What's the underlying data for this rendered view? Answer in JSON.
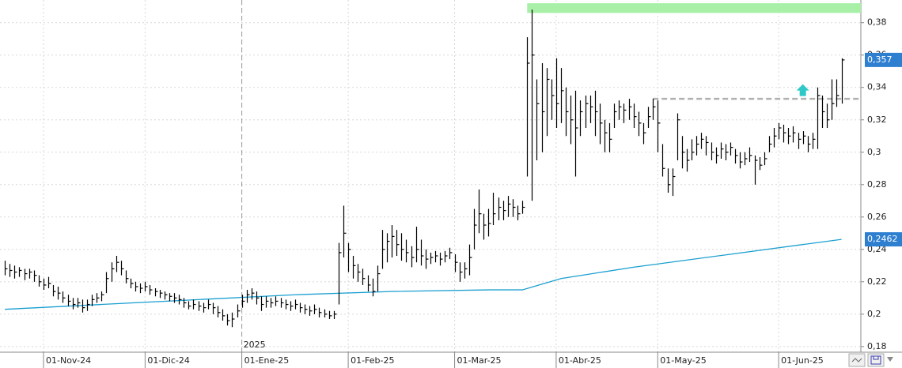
{
  "chart_data": {
    "type": "ohlc",
    "color": "#000000",
    "xlim": [
      -1,
      177
    ],
    "ylim": [
      0.177,
      0.394
    ],
    "grid": true,
    "yticks": [
      {
        "value": 0.18,
        "label": "0,18"
      },
      {
        "value": 0.2,
        "label": "0,2"
      },
      {
        "value": 0.22,
        "label": "0,22"
      },
      {
        "value": 0.24,
        "label": "0,24"
      },
      {
        "value": 0.26,
        "label": "0,26"
      },
      {
        "value": 0.28,
        "label": "0,28"
      },
      {
        "value": 0.3,
        "label": "0,3"
      },
      {
        "value": 0.32,
        "label": "0,32"
      },
      {
        "value": 0.34,
        "label": "0,34"
      },
      {
        "value": 0.36,
        "label": "0,36"
      },
      {
        "value": 0.38,
        "label": "0,38"
      }
    ],
    "xticks": [
      {
        "value": 8,
        "label": "01-Nov-24"
      },
      {
        "value": 29,
        "label": "01-Dic-24"
      },
      {
        "value": 49,
        "label": "01-Ene-25"
      },
      {
        "value": 71,
        "label": "01-Feb-25"
      },
      {
        "value": 93,
        "label": "01-Mar-25"
      },
      {
        "value": 114,
        "label": "01-Abr-25"
      },
      {
        "value": 135,
        "label": "01-May-25"
      },
      {
        "value": 160,
        "label": "01-Jun-25"
      }
    ],
    "year_marker": {
      "value": 49,
      "label": "2025"
    },
    "high": [
      0.233,
      0.231,
      0.23,
      0.229,
      0.228,
      0.228,
      0.227,
      0.224,
      0.222,
      0.223,
      0.218,
      0.217,
      0.214,
      0.212,
      0.21,
      0.21,
      0.209,
      0.209,
      0.212,
      0.213,
      0.214,
      0.226,
      0.232,
      0.236,
      0.233,
      0.227,
      0.222,
      0.22,
      0.219,
      0.22,
      0.218,
      0.216,
      0.215,
      0.214,
      0.213,
      0.213,
      0.212,
      0.21,
      0.208,
      0.209,
      0.208,
      0.207,
      0.209,
      0.207,
      0.205,
      0.203,
      0.2,
      0.201,
      0.206,
      0.212,
      0.215,
      0.216,
      0.214,
      0.211,
      0.211,
      0.21,
      0.211,
      0.21,
      0.209,
      0.208,
      0.209,
      0.207,
      0.206,
      0.205,
      0.206,
      0.204,
      0.203,
      0.202,
      0.202,
      0.244,
      0.267,
      0.244,
      0.236,
      0.231,
      0.228,
      0.224,
      0.222,
      0.23,
      0.252,
      0.25,
      0.255,
      0.252,
      0.25,
      0.246,
      0.242,
      0.254,
      0.246,
      0.24,
      0.238,
      0.239,
      0.238,
      0.239,
      0.241,
      0.237,
      0.232,
      0.232,
      0.243,
      0.265,
      0.277,
      0.262,
      0.265,
      0.275,
      0.272,
      0.27,
      0.273,
      0.271,
      0.267,
      0.27,
      0.371,
      0.388,
      0.345,
      0.355,
      0.352,
      0.345,
      0.358,
      0.352,
      0.34,
      0.335,
      0.338,
      0.332,
      0.335,
      0.335,
      0.338,
      0.33,
      0.32,
      0.318,
      0.33,
      0.332,
      0.33,
      0.333,
      0.33,
      0.325,
      0.318,
      0.328,
      0.333,
      0.332,
      0.305,
      0.29,
      0.29,
      0.324,
      0.31,
      0.302,
      0.308,
      0.31,
      0.312,
      0.31,
      0.306,
      0.303,
      0.306,
      0.305,
      0.306,
      0.302,
      0.3,
      0.3,
      0.303,
      0.298,
      0.297,
      0.3,
      0.31,
      0.315,
      0.318,
      0.317,
      0.315,
      0.316,
      0.312,
      0.313,
      0.31,
      0.312,
      0.34,
      0.335,
      0.33,
      0.345,
      0.345,
      0.358
    ],
    "low": [
      0.224,
      0.223,
      0.222,
      0.223,
      0.221,
      0.222,
      0.22,
      0.217,
      0.215,
      0.216,
      0.211,
      0.209,
      0.207,
      0.205,
      0.203,
      0.204,
      0.201,
      0.202,
      0.205,
      0.207,
      0.208,
      0.213,
      0.22,
      0.226,
      0.224,
      0.219,
      0.216,
      0.214,
      0.213,
      0.214,
      0.212,
      0.211,
      0.21,
      0.209,
      0.208,
      0.207,
      0.206,
      0.204,
      0.203,
      0.203,
      0.202,
      0.201,
      0.203,
      0.2,
      0.198,
      0.196,
      0.193,
      0.192,
      0.198,
      0.204,
      0.207,
      0.209,
      0.206,
      0.202,
      0.204,
      0.204,
      0.205,
      0.204,
      0.203,
      0.202,
      0.203,
      0.201,
      0.2,
      0.199,
      0.2,
      0.198,
      0.198,
      0.197,
      0.197,
      0.206,
      0.235,
      0.226,
      0.222,
      0.22,
      0.218,
      0.214,
      0.211,
      0.214,
      0.228,
      0.232,
      0.235,
      0.236,
      0.233,
      0.232,
      0.229,
      0.232,
      0.23,
      0.228,
      0.231,
      0.232,
      0.23,
      0.232,
      0.234,
      0.226,
      0.22,
      0.222,
      0.224,
      0.24,
      0.25,
      0.246,
      0.248,
      0.255,
      0.258,
      0.258,
      0.26,
      0.26,
      0.258,
      0.262,
      0.285,
      0.27,
      0.295,
      0.3,
      0.31,
      0.32,
      0.315,
      0.318,
      0.31,
      0.305,
      0.285,
      0.31,
      0.315,
      0.318,
      0.31,
      0.305,
      0.3,
      0.3,
      0.315,
      0.32,
      0.318,
      0.32,
      0.315,
      0.31,
      0.305,
      0.315,
      0.32,
      0.3,
      0.285,
      0.275,
      0.273,
      0.295,
      0.29,
      0.288,
      0.295,
      0.298,
      0.302,
      0.298,
      0.295,
      0.293,
      0.296,
      0.295,
      0.298,
      0.293,
      0.29,
      0.292,
      0.294,
      0.28,
      0.289,
      0.292,
      0.3,
      0.303,
      0.308,
      0.306,
      0.305,
      0.306,
      0.302,
      0.305,
      0.3,
      0.302,
      0.302,
      0.315,
      0.315,
      0.32,
      0.328,
      0.33
    ],
    "close": [
      0.228,
      0.227,
      0.226,
      0.227,
      0.225,
      0.226,
      0.224,
      0.22,
      0.218,
      0.219,
      0.214,
      0.213,
      0.21,
      0.208,
      0.206,
      0.207,
      0.204,
      0.206,
      0.209,
      0.21,
      0.212,
      0.222,
      0.228,
      0.232,
      0.228,
      0.222,
      0.219,
      0.217,
      0.216,
      0.217,
      0.215,
      0.214,
      0.213,
      0.212,
      0.211,
      0.21,
      0.209,
      0.207,
      0.205,
      0.206,
      0.205,
      0.204,
      0.206,
      0.204,
      0.201,
      0.199,
      0.196,
      0.197,
      0.202,
      0.208,
      0.212,
      0.213,
      0.21,
      0.206,
      0.208,
      0.207,
      0.208,
      0.207,
      0.206,
      0.205,
      0.206,
      0.204,
      0.203,
      0.202,
      0.203,
      0.201,
      0.2,
      0.199,
      0.2,
      0.238,
      0.25,
      0.24,
      0.23,
      0.226,
      0.222,
      0.218,
      0.214,
      0.225,
      0.24,
      0.245,
      0.248,
      0.243,
      0.24,
      0.238,
      0.235,
      0.24,
      0.236,
      0.234,
      0.235,
      0.236,
      0.234,
      0.236,
      0.238,
      0.232,
      0.226,
      0.228,
      0.235,
      0.255,
      0.262,
      0.255,
      0.256,
      0.262,
      0.266,
      0.264,
      0.268,
      0.266,
      0.262,
      0.266,
      0.355,
      0.36,
      0.33,
      0.325,
      0.345,
      0.335,
      0.33,
      0.338,
      0.325,
      0.32,
      0.315,
      0.325,
      0.33,
      0.328,
      0.325,
      0.318,
      0.312,
      0.308,
      0.325,
      0.328,
      0.326,
      0.328,
      0.322,
      0.318,
      0.312,
      0.322,
      0.328,
      0.318,
      0.29,
      0.28,
      0.285,
      0.32,
      0.3,
      0.295,
      0.3,
      0.305,
      0.308,
      0.306,
      0.3,
      0.298,
      0.302,
      0.3,
      0.303,
      0.298,
      0.294,
      0.296,
      0.298,
      0.295,
      0.292,
      0.296,
      0.305,
      0.31,
      0.315,
      0.312,
      0.31,
      0.312,
      0.308,
      0.31,
      0.305,
      0.308,
      0.335,
      0.325,
      0.32,
      0.33,
      0.335,
      0.357
    ],
    "moving_average": {
      "color": "#1a9fd0",
      "x": [
        0,
        20,
        40,
        60,
        80,
        100,
        107,
        115,
        130,
        150,
        173
      ],
      "values": [
        0.203,
        0.206,
        0.209,
        0.212,
        0.214,
        0.215,
        0.215,
        0.222,
        0.229,
        0.237,
        0.2462
      ]
    },
    "last_price": {
      "value": 0.357,
      "label": "0,357"
    },
    "average_price": {
      "value": 0.2462,
      "label": "0,2462"
    },
    "resistance_band": {
      "color": "#a8f0a8",
      "x": [
        108,
        177
      ],
      "y": [
        0.386,
        0.392
      ]
    },
    "support_line": {
      "color": "#b0b0b0",
      "x": [
        134,
        177
      ],
      "value": 0.333
    },
    "signal_arrow": {
      "color": "#2ec8c8",
      "x": 165,
      "value": 0.342
    }
  }
}
